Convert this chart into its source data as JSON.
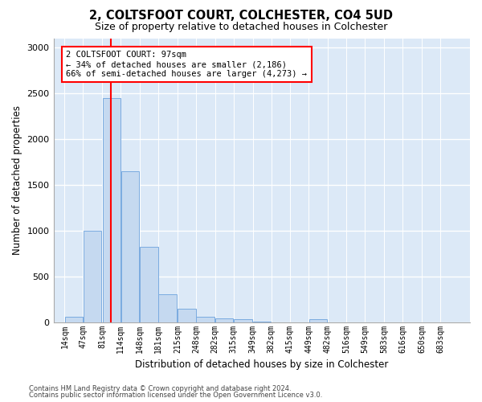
{
  "title": "2, COLTSFOOT COURT, COLCHESTER, CO4 5UD",
  "subtitle": "Size of property relative to detached houses in Colchester",
  "xlabel": "Distribution of detached houses by size in Colchester",
  "ylabel": "Number of detached properties",
  "bar_color": "#c5d9f0",
  "bar_edge_color": "#7aabe0",
  "bg_color": "#dce9f7",
  "grid_color": "#ffffff",
  "red_line_x": 97,
  "annotation_text": "2 COLTSFOOT COURT: 97sqm\n← 34% of detached houses are smaller (2,186)\n66% of semi-detached houses are larger (4,273) →",
  "bin_edges": [
    14,
    47,
    81,
    114,
    148,
    181,
    215,
    248,
    282,
    315,
    349,
    382,
    415,
    449,
    482,
    516,
    549,
    583,
    616,
    650,
    683
  ],
  "bar_heights": [
    55,
    1000,
    2450,
    1650,
    825,
    300,
    150,
    55,
    40,
    30,
    5,
    0,
    0,
    30,
    0,
    0,
    0,
    0,
    0,
    0
  ],
  "ylim": [
    0,
    3100
  ],
  "yticks": [
    0,
    500,
    1000,
    1500,
    2000,
    2500,
    3000
  ],
  "footnote1": "Contains HM Land Registry data © Crown copyright and database right 2024.",
  "footnote2": "Contains public sector information licensed under the Open Government Licence v3.0."
}
